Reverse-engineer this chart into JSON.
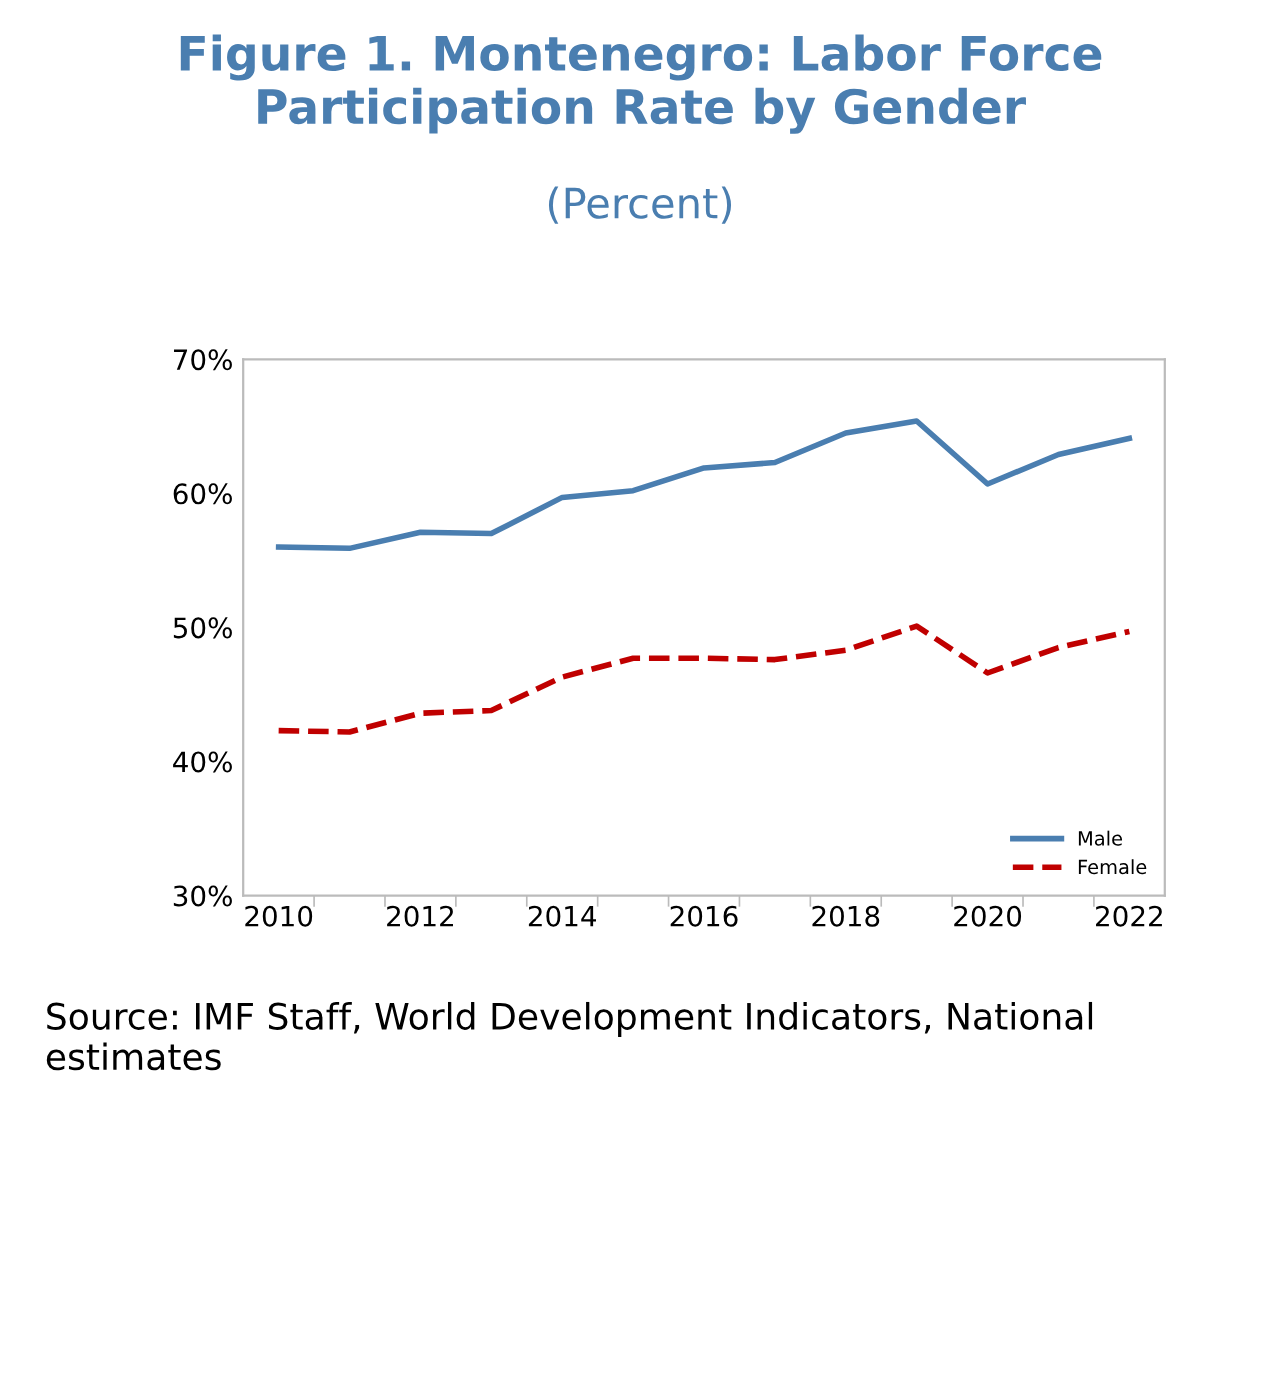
{
  "chart_data": {
    "type": "line",
    "title": "Figure 1. Montenegro: Labor Force Participation Rate by Gender",
    "subtitle": "(Percent)",
    "categories": [
      "2010",
      null,
      "2012",
      null,
      "2014",
      null,
      "2016",
      null,
      "2018",
      null,
      "2020",
      null,
      "2022"
    ],
    "series": [
      {
        "name": "Male",
        "color": "#4a7eb0",
        "line_style": "solid",
        "values": [
          56.0,
          55.9,
          57.1,
          57.0,
          59.7,
          60.2,
          61.9,
          62.3,
          64.5,
          65.4,
          60.7,
          62.9,
          64.1
        ]
      },
      {
        "name": "Female",
        "color": "#c00000",
        "line_style": "dashed",
        "values": [
          42.3,
          42.2,
          43.6,
          43.8,
          46.3,
          47.7,
          47.7,
          47.6,
          48.3,
          50.1,
          46.6,
          48.5,
          49.7
        ]
      }
    ],
    "ylim": [
      30,
      70
    ],
    "yticks": [
      {
        "value": 30,
        "label": "30%"
      },
      {
        "value": 40,
        "label": "40%"
      },
      {
        "value": 50,
        "label": "50%"
      },
      {
        "value": 60,
        "label": "60%"
      },
      {
        "value": 70,
        "label": "70%"
      }
    ],
    "grid": false,
    "legend": "bottom right",
    "marker": "none",
    "annotations": [
      "Source: IMF Staff, World Development Indicators, National estimates"
    ]
  }
}
